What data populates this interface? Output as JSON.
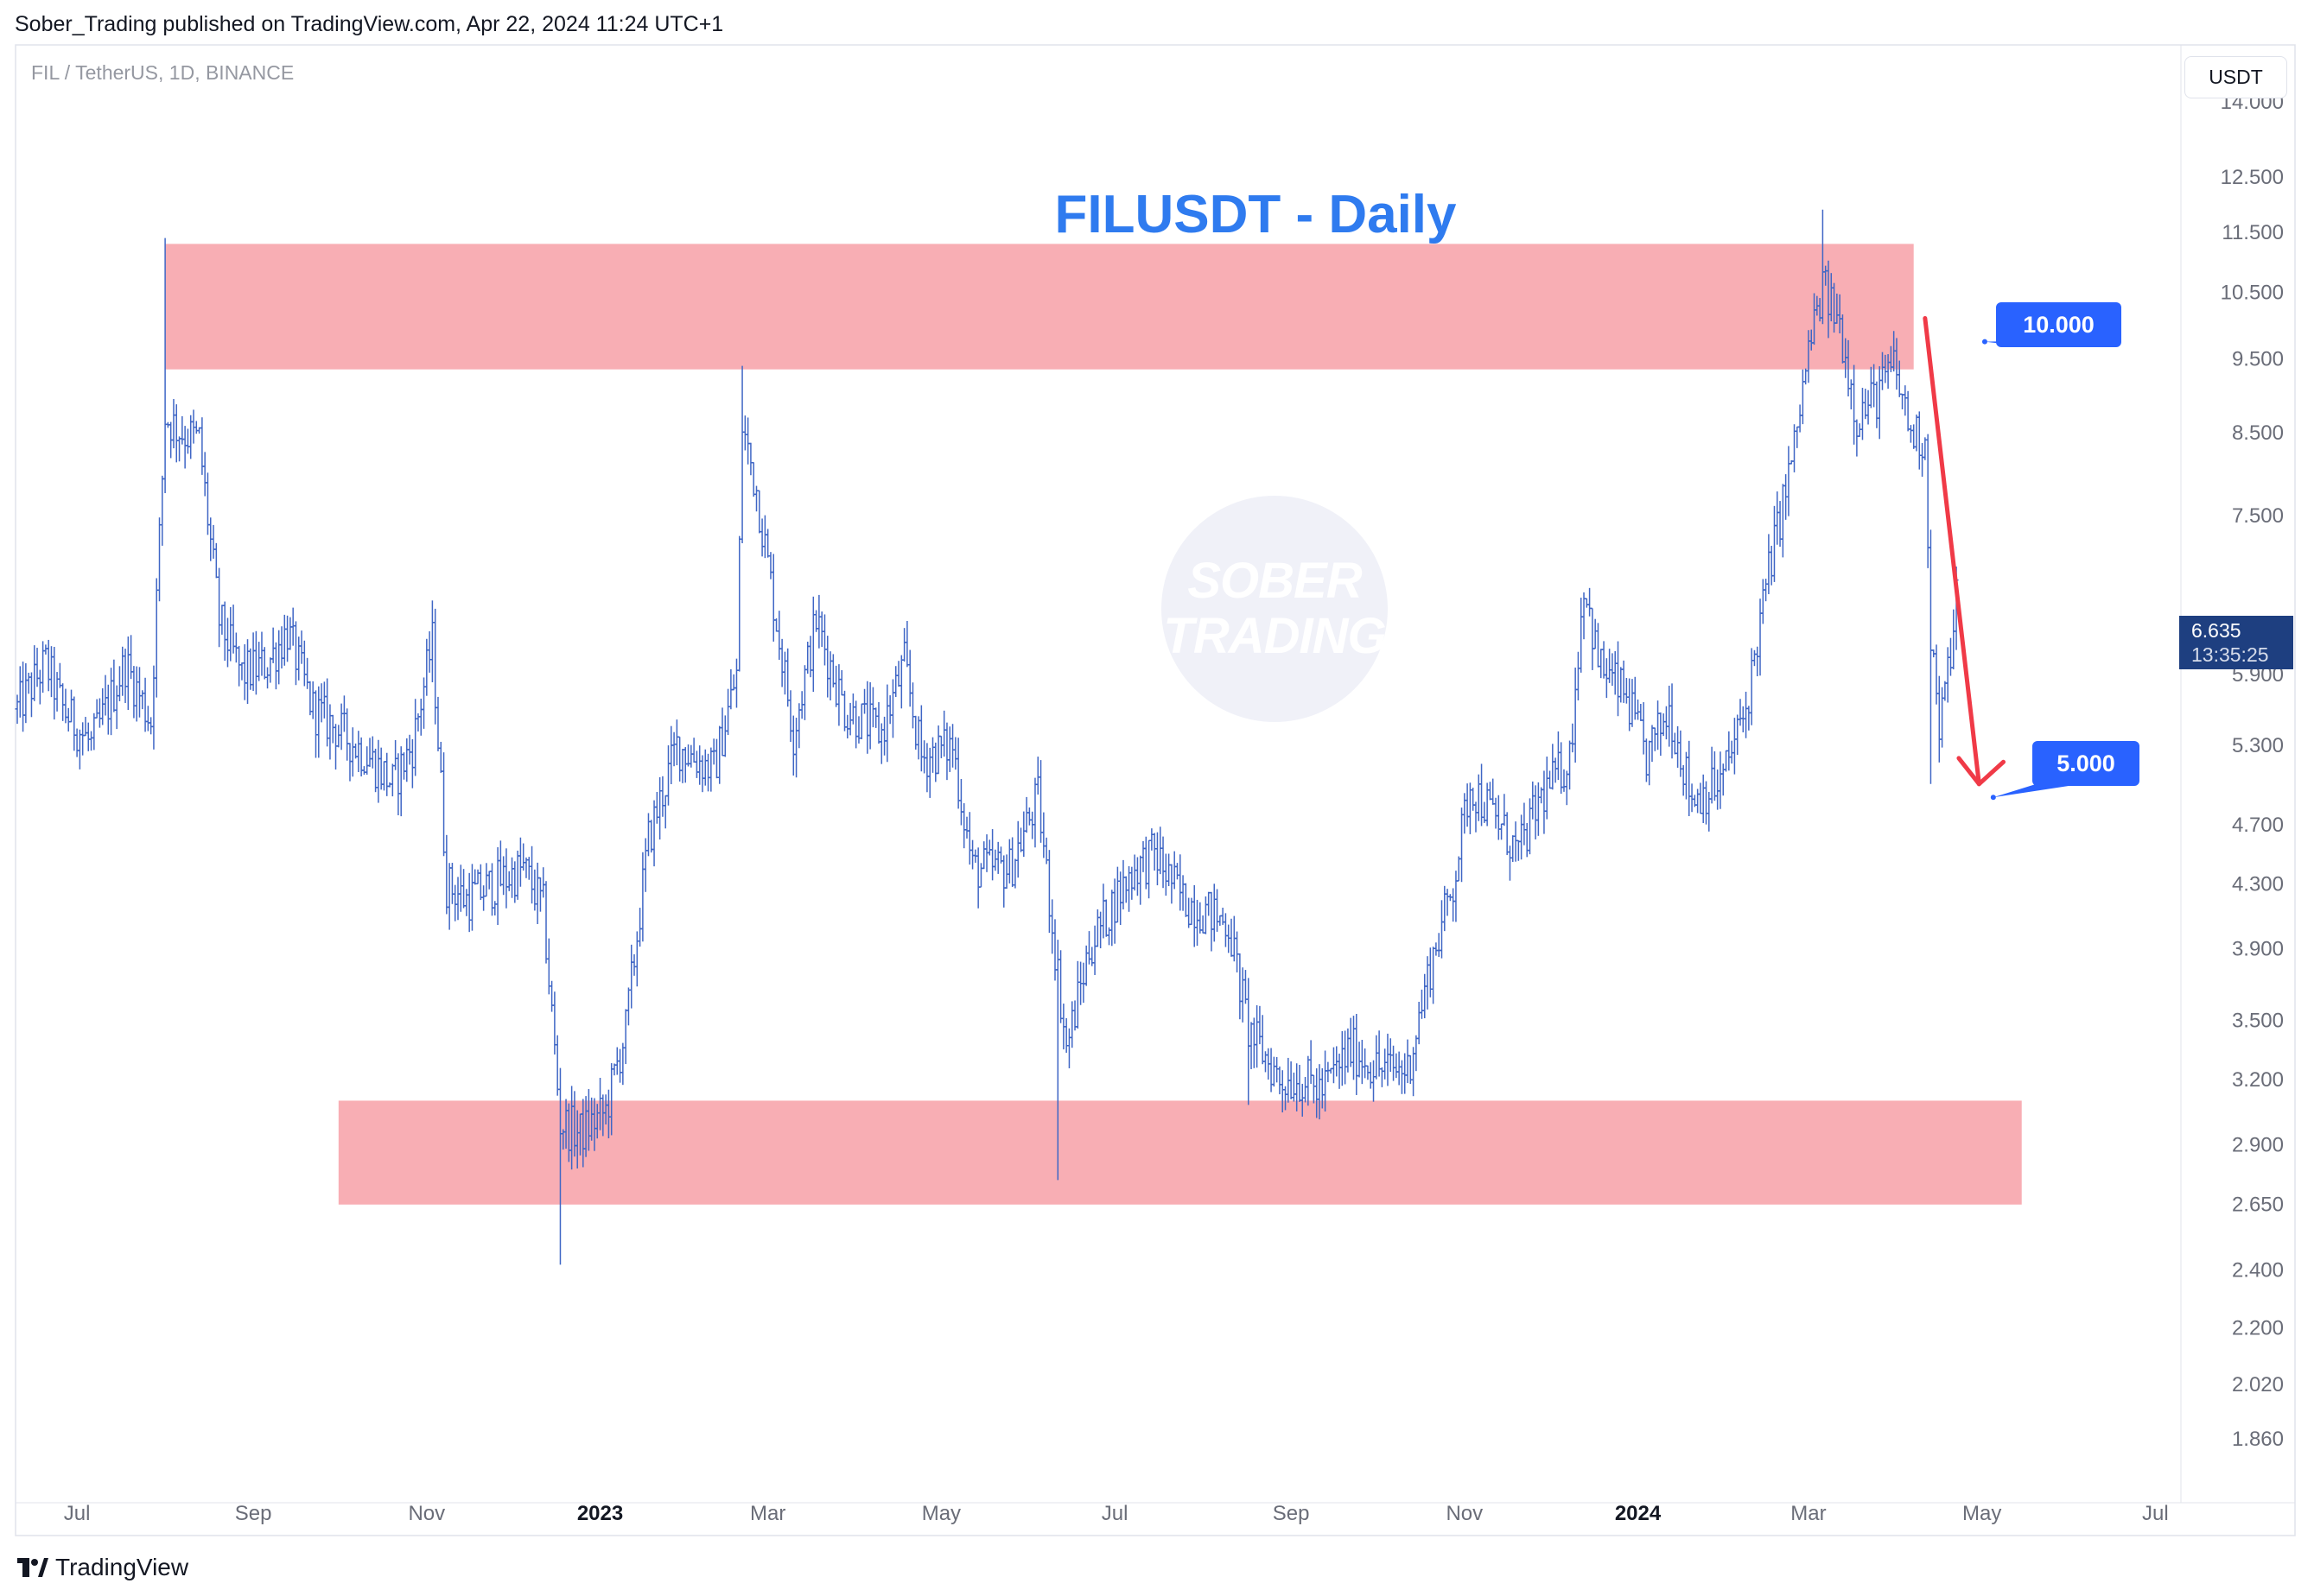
{
  "header": {
    "published_by": "Sober_Trading published on TradingView.com, Apr 22, 2024 11:24 UTC+1"
  },
  "symbol_info": "FIL / TetherUS, 1D, BINANCE",
  "currency_button": "USDT",
  "chart_title": "FILUSDT - Daily",
  "watermark": {
    "line1": "SOBER",
    "line2": "TRADING"
  },
  "last_price": {
    "value": "6.635",
    "countdown": "13:35:25"
  },
  "callouts": {
    "upper": "10.000",
    "lower": "5.000"
  },
  "footer": {
    "brand": "TradingView"
  },
  "colors": {
    "bars": "#3f66c5",
    "zone": "#f8aeb4",
    "arrow": "#f03a47",
    "title": "#2f7bef",
    "callout": "#2962ff",
    "price_tag": "#1e3f80"
  },
  "chart_data": {
    "type": "ohlc-bar",
    "scale": "log",
    "ylim": [
      1.75,
      15.2
    ],
    "x_start": "2022-06-10",
    "x_end": "2024-07-10",
    "y_ticks": [
      "14.000",
      "12.500",
      "11.500",
      "10.500",
      "9.500",
      "8.500",
      "7.500",
      "5.900",
      "5.300",
      "4.700",
      "4.300",
      "3.900",
      "3.500",
      "3.200",
      "2.900",
      "2.650",
      "2.400",
      "2.200",
      "2.020",
      "1.860"
    ],
    "x_ticks": [
      {
        "label": "Jul",
        "date": "2022-07-01",
        "bold": false
      },
      {
        "label": "Sep",
        "date": "2022-09-01",
        "bold": false
      },
      {
        "label": "Nov",
        "date": "2022-11-01",
        "bold": false
      },
      {
        "label": "2023",
        "date": "2023-01-01",
        "bold": true
      },
      {
        "label": "Mar",
        "date": "2023-03-01",
        "bold": false
      },
      {
        "label": "May",
        "date": "2023-05-01",
        "bold": false
      },
      {
        "label": "Jul",
        "date": "2023-07-01",
        "bold": false
      },
      {
        "label": "Sep",
        "date": "2023-09-01",
        "bold": false
      },
      {
        "label": "Nov",
        "date": "2023-11-01",
        "bold": false
      },
      {
        "label": "2024",
        "date": "2024-01-01",
        "bold": true
      },
      {
        "label": "Mar",
        "date": "2024-03-01",
        "bold": false
      },
      {
        "label": "May",
        "date": "2024-05-01",
        "bold": false
      },
      {
        "label": "Jul",
        "date": "2024-07-01",
        "bold": false
      }
    ],
    "series_start_date": "2022-06-10",
    "series_end_date": "2024-04-22",
    "close_keypoints": [
      [
        "2022-06-10",
        5.6
      ],
      [
        "2022-06-20",
        6.0
      ],
      [
        "2022-06-26",
        5.6
      ],
      [
        "2022-07-06",
        5.3
      ],
      [
        "2022-07-18",
        6.0
      ],
      [
        "2022-07-27",
        5.5
      ],
      [
        "2022-08-01",
        8.7
      ],
      [
        "2022-08-07",
        8.5
      ],
      [
        "2022-08-13",
        8.4
      ],
      [
        "2022-08-20",
        6.4
      ],
      [
        "2022-08-28",
        5.9
      ],
      [
        "2022-09-06",
        6.0
      ],
      [
        "2022-09-13",
        6.3
      ],
      [
        "2022-09-22",
        5.6
      ],
      [
        "2022-10-02",
        5.4
      ],
      [
        "2022-10-12",
        5.2
      ],
      [
        "2022-10-20",
        5.0
      ],
      [
        "2022-10-27",
        5.3
      ],
      [
        "2022-11-03",
        6.2
      ],
      [
        "2022-11-08",
        4.3
      ],
      [
        "2022-11-15",
        4.2
      ],
      [
        "2022-11-25",
        4.3
      ],
      [
        "2022-12-05",
        4.4
      ],
      [
        "2022-12-12",
        4.15
      ],
      [
        "2022-12-18",
        3.0
      ],
      [
        "2022-12-25",
        2.95
      ],
      [
        "2023-01-03",
        3.05
      ],
      [
        "2023-01-10",
        3.45
      ],
      [
        "2023-01-18",
        4.6
      ],
      [
        "2023-01-28",
        5.3
      ],
      [
        "2023-02-10",
        5.1
      ],
      [
        "2023-02-18",
        5.9
      ],
      [
        "2023-02-20",
        8.6
      ],
      [
        "2023-02-25",
        7.8
      ],
      [
        "2023-03-04",
        6.4
      ],
      [
        "2023-03-10",
        5.4
      ],
      [
        "2023-03-18",
        6.4
      ],
      [
        "2023-03-28",
        5.6
      ],
      [
        "2023-04-10",
        5.4
      ],
      [
        "2023-04-18",
        6.0
      ],
      [
        "2023-04-24",
        5.2
      ],
      [
        "2023-05-05",
        5.3
      ],
      [
        "2023-05-12",
        4.4
      ],
      [
        "2023-05-25",
        4.4
      ],
      [
        "2023-06-04",
        4.9
      ],
      [
        "2023-06-10",
        3.9
      ],
      [
        "2023-06-14",
        3.35
      ],
      [
        "2023-06-22",
        3.9
      ],
      [
        "2023-07-01",
        4.2
      ],
      [
        "2023-07-08",
        4.4
      ],
      [
        "2023-07-15",
        4.5
      ],
      [
        "2023-07-25",
        4.2
      ],
      [
        "2023-08-10",
        4.05
      ],
      [
        "2023-08-17",
        3.45
      ],
      [
        "2023-08-28",
        3.2
      ],
      [
        "2023-09-05",
        3.2
      ],
      [
        "2023-09-12",
        3.15
      ],
      [
        "2023-09-22",
        3.35
      ],
      [
        "2023-10-02",
        3.25
      ],
      [
        "2023-10-12",
        3.25
      ],
      [
        "2023-10-20",
        3.8
      ],
      [
        "2023-10-28",
        4.3
      ],
      [
        "2023-11-03",
        5.0
      ],
      [
        "2023-11-10",
        4.8
      ],
      [
        "2023-11-20",
        4.5
      ],
      [
        "2023-11-28",
        4.9
      ],
      [
        "2023-12-08",
        5.2
      ],
      [
        "2023-12-13",
        6.8
      ],
      [
        "2023-12-18",
        6.0
      ],
      [
        "2023-12-28",
        5.7
      ],
      [
        "2024-01-04",
        5.2
      ],
      [
        "2024-01-12",
        5.6
      ],
      [
        "2024-01-20",
        4.9
      ],
      [
        "2024-01-30",
        5.0
      ],
      [
        "2024-02-08",
        5.6
      ],
      [
        "2024-02-16",
        6.9
      ],
      [
        "2024-02-25",
        8.3
      ],
      [
        "2024-03-01",
        9.6
      ],
      [
        "2024-03-06",
        10.6
      ],
      [
        "2024-03-12",
        10.0
      ],
      [
        "2024-03-18",
        8.7
      ],
      [
        "2024-03-25",
        9.0
      ],
      [
        "2024-03-31",
        9.4
      ],
      [
        "2024-04-06",
        8.5
      ],
      [
        "2024-04-11",
        8.4
      ],
      [
        "2024-04-13",
        6.3
      ],
      [
        "2024-04-16",
        5.4
      ],
      [
        "2024-04-19",
        5.9
      ],
      [
        "2024-04-22",
        6.635
      ]
    ],
    "wick_extremes": [
      [
        "2022-08-01",
        11.4,
        null
      ],
      [
        "2022-12-18",
        null,
        2.42
      ],
      [
        "2023-02-20",
        9.4,
        null
      ],
      [
        "2023-06-11",
        null,
        2.75
      ],
      [
        "2023-08-17",
        null,
        3.08
      ],
      [
        "2023-09-10",
        null,
        3.02
      ],
      [
        "2024-03-06",
        11.9,
        null
      ],
      [
        "2024-04-13",
        null,
        5.0
      ]
    ],
    "zones": [
      {
        "from": "2022-08-01",
        "to": "2024-04-07",
        "top": 11.3,
        "bottom": 9.35
      },
      {
        "from": "2022-10-01",
        "to": "2024-05-15",
        "top": 3.1,
        "bottom": 2.65
      }
    ],
    "arrow": {
      "from": [
        "2024-04-11",
        10.1
      ],
      "to": [
        "2024-04-30",
        5.0
      ]
    },
    "callout_anchors": {
      "upper": {
        "date": "2024-05-02",
        "price": 9.75
      },
      "lower": {
        "date": "2024-05-05",
        "price": 4.9
      }
    }
  }
}
